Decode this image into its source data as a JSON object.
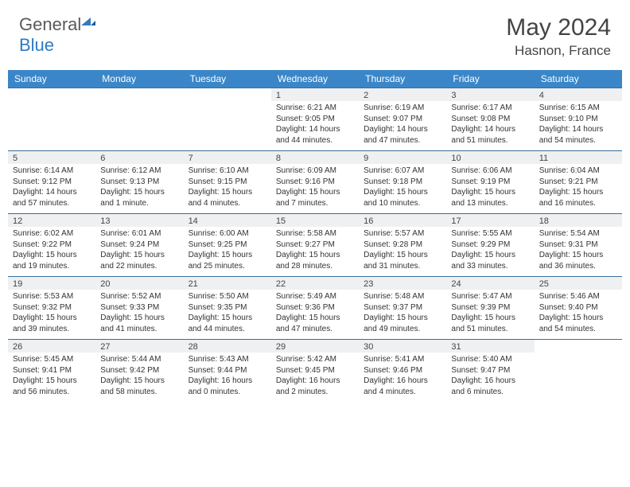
{
  "brand": {
    "part1": "General",
    "part2": "Blue"
  },
  "title": "May 2024",
  "location": "Hasnon, France",
  "colors": {
    "header_bg": "#3a86c8",
    "header_fg": "#ffffff",
    "daybar_bg": "#eef0f2",
    "daybar_border": "#3a6f9c",
    "text": "#333333",
    "logo_gray": "#5a5a5a",
    "logo_blue": "#2f7bbf"
  },
  "typography": {
    "title_fontsize": 30,
    "location_fontsize": 17,
    "header_fontsize": 12,
    "daynum_fontsize": 11,
    "cell_fontsize": 10
  },
  "days_of_week": [
    "Sunday",
    "Monday",
    "Tuesday",
    "Wednesday",
    "Thursday",
    "Friday",
    "Saturday"
  ],
  "weeks": [
    [
      null,
      null,
      null,
      {
        "num": "1",
        "sunrise": "Sunrise: 6:21 AM",
        "sunset": "Sunset: 9:05 PM",
        "daylight": "Daylight: 14 hours and 44 minutes."
      },
      {
        "num": "2",
        "sunrise": "Sunrise: 6:19 AM",
        "sunset": "Sunset: 9:07 PM",
        "daylight": "Daylight: 14 hours and 47 minutes."
      },
      {
        "num": "3",
        "sunrise": "Sunrise: 6:17 AM",
        "sunset": "Sunset: 9:08 PM",
        "daylight": "Daylight: 14 hours and 51 minutes."
      },
      {
        "num": "4",
        "sunrise": "Sunrise: 6:15 AM",
        "sunset": "Sunset: 9:10 PM",
        "daylight": "Daylight: 14 hours and 54 minutes."
      }
    ],
    [
      {
        "num": "5",
        "sunrise": "Sunrise: 6:14 AM",
        "sunset": "Sunset: 9:12 PM",
        "daylight": "Daylight: 14 hours and 57 minutes."
      },
      {
        "num": "6",
        "sunrise": "Sunrise: 6:12 AM",
        "sunset": "Sunset: 9:13 PM",
        "daylight": "Daylight: 15 hours and 1 minute."
      },
      {
        "num": "7",
        "sunrise": "Sunrise: 6:10 AM",
        "sunset": "Sunset: 9:15 PM",
        "daylight": "Daylight: 15 hours and 4 minutes."
      },
      {
        "num": "8",
        "sunrise": "Sunrise: 6:09 AM",
        "sunset": "Sunset: 9:16 PM",
        "daylight": "Daylight: 15 hours and 7 minutes."
      },
      {
        "num": "9",
        "sunrise": "Sunrise: 6:07 AM",
        "sunset": "Sunset: 9:18 PM",
        "daylight": "Daylight: 15 hours and 10 minutes."
      },
      {
        "num": "10",
        "sunrise": "Sunrise: 6:06 AM",
        "sunset": "Sunset: 9:19 PM",
        "daylight": "Daylight: 15 hours and 13 minutes."
      },
      {
        "num": "11",
        "sunrise": "Sunrise: 6:04 AM",
        "sunset": "Sunset: 9:21 PM",
        "daylight": "Daylight: 15 hours and 16 minutes."
      }
    ],
    [
      {
        "num": "12",
        "sunrise": "Sunrise: 6:02 AM",
        "sunset": "Sunset: 9:22 PM",
        "daylight": "Daylight: 15 hours and 19 minutes."
      },
      {
        "num": "13",
        "sunrise": "Sunrise: 6:01 AM",
        "sunset": "Sunset: 9:24 PM",
        "daylight": "Daylight: 15 hours and 22 minutes."
      },
      {
        "num": "14",
        "sunrise": "Sunrise: 6:00 AM",
        "sunset": "Sunset: 9:25 PM",
        "daylight": "Daylight: 15 hours and 25 minutes."
      },
      {
        "num": "15",
        "sunrise": "Sunrise: 5:58 AM",
        "sunset": "Sunset: 9:27 PM",
        "daylight": "Daylight: 15 hours and 28 minutes."
      },
      {
        "num": "16",
        "sunrise": "Sunrise: 5:57 AM",
        "sunset": "Sunset: 9:28 PM",
        "daylight": "Daylight: 15 hours and 31 minutes."
      },
      {
        "num": "17",
        "sunrise": "Sunrise: 5:55 AM",
        "sunset": "Sunset: 9:29 PM",
        "daylight": "Daylight: 15 hours and 33 minutes."
      },
      {
        "num": "18",
        "sunrise": "Sunrise: 5:54 AM",
        "sunset": "Sunset: 9:31 PM",
        "daylight": "Daylight: 15 hours and 36 minutes."
      }
    ],
    [
      {
        "num": "19",
        "sunrise": "Sunrise: 5:53 AM",
        "sunset": "Sunset: 9:32 PM",
        "daylight": "Daylight: 15 hours and 39 minutes."
      },
      {
        "num": "20",
        "sunrise": "Sunrise: 5:52 AM",
        "sunset": "Sunset: 9:33 PM",
        "daylight": "Daylight: 15 hours and 41 minutes."
      },
      {
        "num": "21",
        "sunrise": "Sunrise: 5:50 AM",
        "sunset": "Sunset: 9:35 PM",
        "daylight": "Daylight: 15 hours and 44 minutes."
      },
      {
        "num": "22",
        "sunrise": "Sunrise: 5:49 AM",
        "sunset": "Sunset: 9:36 PM",
        "daylight": "Daylight: 15 hours and 47 minutes."
      },
      {
        "num": "23",
        "sunrise": "Sunrise: 5:48 AM",
        "sunset": "Sunset: 9:37 PM",
        "daylight": "Daylight: 15 hours and 49 minutes."
      },
      {
        "num": "24",
        "sunrise": "Sunrise: 5:47 AM",
        "sunset": "Sunset: 9:39 PM",
        "daylight": "Daylight: 15 hours and 51 minutes."
      },
      {
        "num": "25",
        "sunrise": "Sunrise: 5:46 AM",
        "sunset": "Sunset: 9:40 PM",
        "daylight": "Daylight: 15 hours and 54 minutes."
      }
    ],
    [
      {
        "num": "26",
        "sunrise": "Sunrise: 5:45 AM",
        "sunset": "Sunset: 9:41 PM",
        "daylight": "Daylight: 15 hours and 56 minutes."
      },
      {
        "num": "27",
        "sunrise": "Sunrise: 5:44 AM",
        "sunset": "Sunset: 9:42 PM",
        "daylight": "Daylight: 15 hours and 58 minutes."
      },
      {
        "num": "28",
        "sunrise": "Sunrise: 5:43 AM",
        "sunset": "Sunset: 9:44 PM",
        "daylight": "Daylight: 16 hours and 0 minutes."
      },
      {
        "num": "29",
        "sunrise": "Sunrise: 5:42 AM",
        "sunset": "Sunset: 9:45 PM",
        "daylight": "Daylight: 16 hours and 2 minutes."
      },
      {
        "num": "30",
        "sunrise": "Sunrise: 5:41 AM",
        "sunset": "Sunset: 9:46 PM",
        "daylight": "Daylight: 16 hours and 4 minutes."
      },
      {
        "num": "31",
        "sunrise": "Sunrise: 5:40 AM",
        "sunset": "Sunset: 9:47 PM",
        "daylight": "Daylight: 16 hours and 6 minutes."
      },
      null
    ]
  ]
}
